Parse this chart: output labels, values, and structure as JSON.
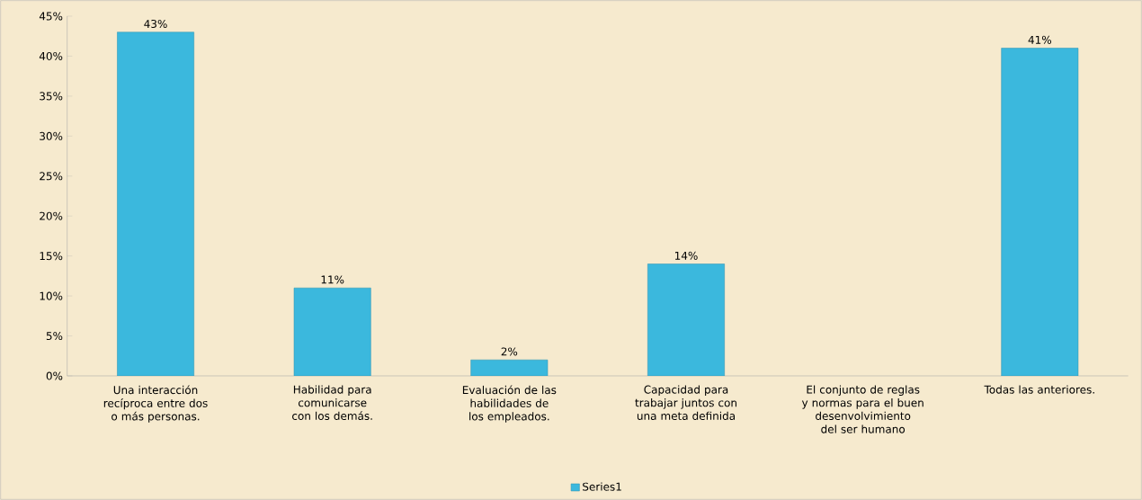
{
  "chart_data": {
    "type": "bar",
    "categories": [
      "Una interacción recíproca entre dos o más personas.",
      "Habilidad para comunicarse con los demás.",
      "Evaluación de las habilidades de los empleados.",
      "Capacidad para trabajar juntos con una meta definida",
      "El conjunto de reglas y normas para el buen desenvolvimiento del ser humano",
      "Todas las anteriores."
    ],
    "series": [
      {
        "name": "Series1",
        "color": "#3bb8dd",
        "values": [
          43,
          11,
          2,
          14,
          null,
          41
        ],
        "value_labels": [
          "43%",
          "11%",
          "2%",
          "14%",
          null,
          "41%"
        ]
      }
    ],
    "ylim": [
      0,
      45
    ],
    "yticks": [
      {
        "value": 0,
        "label": "0%"
      },
      {
        "value": 5,
        "label": "5%"
      },
      {
        "value": 10,
        "label": "10%"
      },
      {
        "value": 15,
        "label": "15%"
      },
      {
        "value": 20,
        "label": "20%"
      },
      {
        "value": 25,
        "label": "25%"
      },
      {
        "value": 30,
        "label": "30%"
      },
      {
        "value": 35,
        "label": "35%"
      },
      {
        "value": 40,
        "label": "40%"
      },
      {
        "value": 45,
        "label": "45%"
      }
    ],
    "grid": false,
    "legend": "bottom"
  }
}
